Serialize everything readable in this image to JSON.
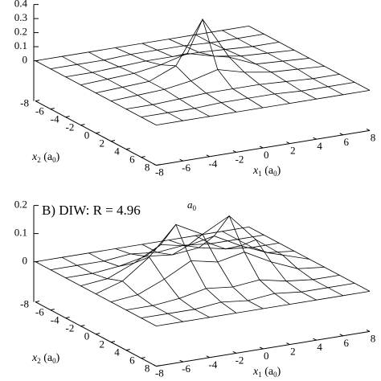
{
  "chart_data": [
    {
      "type": "surface",
      "x1": [
        -8,
        -6,
        -4,
        -2,
        0,
        2,
        4,
        6,
        8
      ],
      "x2": [
        -8,
        -6,
        -4,
        -2,
        0,
        2,
        4,
        6,
        8
      ],
      "z": [
        [
          0,
          0,
          0,
          0,
          0,
          0,
          0,
          0,
          0
        ],
        [
          0,
          0,
          0,
          0.01,
          0.01,
          0.01,
          0,
          0,
          0
        ],
        [
          0,
          0,
          0.01,
          0.02,
          0.02,
          0.02,
          0.01,
          0,
          0
        ],
        [
          0,
          0.01,
          0.02,
          0.05,
          0.1,
          0.05,
          0.02,
          0.01,
          0
        ],
        [
          0,
          0.01,
          0.02,
          0.1,
          0.4,
          0.1,
          0.02,
          0.01,
          0
        ],
        [
          0,
          0.01,
          0.02,
          0.05,
          0.1,
          0.05,
          0.02,
          0.01,
          0
        ],
        [
          0,
          0,
          0.01,
          0.02,
          0.02,
          0.02,
          0.01,
          0,
          0
        ],
        [
          0,
          0,
          0,
          0.01,
          0.01,
          0.01,
          0,
          0,
          0
        ],
        [
          0,
          0,
          0,
          0,
          0,
          0,
          0,
          0,
          0
        ]
      ],
      "zlim": [
        0,
        0.4
      ],
      "zticks": [
        0,
        0.1,
        0.2,
        0.3,
        0.4
      ],
      "x1ticks": [
        -8,
        -6,
        -4,
        -2,
        0,
        2,
        4,
        6,
        8
      ],
      "x2ticks": [
        -8,
        -6,
        -4,
        -2,
        0,
        2,
        4,
        6,
        8
      ],
      "x1_label": {
        "var": "x",
        "sub": "1",
        "unit": " (a",
        "unit_sub": "0",
        "close": ")"
      },
      "x2_label": {
        "var": "x",
        "sub": "2",
        "unit": " (a",
        "unit_sub": "0",
        "close": ")"
      },
      "color": "#000000"
    },
    {
      "type": "surface",
      "title": "B) DIW:  R = 4.96",
      "title_unit": {
        "var": "a",
        "sub": "0"
      },
      "x1": [
        -8,
        -6,
        -4,
        -2,
        0,
        2,
        4,
        6,
        8
      ],
      "x2": [
        -8,
        -6,
        -4,
        -2,
        0,
        2,
        4,
        6,
        8
      ],
      "z": [
        [
          0,
          0,
          0,
          0,
          0,
          0,
          0,
          0,
          0
        ],
        [
          0,
          0,
          0,
          0.01,
          0,
          0.01,
          0,
          0,
          0
        ],
        [
          0,
          0,
          0.01,
          0.03,
          0.02,
          0.03,
          0.01,
          0,
          0
        ],
        [
          0,
          0.01,
          0.05,
          0.1,
          0.08,
          0.1,
          0.05,
          0.01,
          0
        ],
        [
          0,
          0.03,
          0.1,
          0.2,
          0.15,
          0.2,
          0.1,
          0.03,
          0
        ],
        [
          0,
          0.01,
          0.05,
          0.1,
          0.08,
          0.1,
          0.05,
          0.01,
          0
        ],
        [
          0,
          0,
          0.01,
          0.03,
          0.02,
          0.03,
          0.01,
          0,
          0
        ],
        [
          0,
          0,
          0,
          0.01,
          0,
          0.01,
          0,
          0,
          0
        ],
        [
          0,
          0,
          0,
          0,
          0,
          0,
          0,
          0,
          0
        ]
      ],
      "zlim": [
        0,
        0.2
      ],
      "zticks": [
        0,
        0.1,
        0.2
      ],
      "x1ticks": [
        -8,
        -6,
        -4,
        -2,
        0,
        2,
        4,
        6,
        8
      ],
      "x2ticks": [
        -8,
        -6,
        -4,
        -2,
        0,
        2,
        4,
        6,
        8
      ],
      "x1_label": {
        "var": "x",
        "sub": "1",
        "unit": " (a",
        "unit_sub": "0",
        "close": ")"
      },
      "x2_label": {
        "var": "x",
        "sub": "2",
        "unit": " (a",
        "unit_sub": "0",
        "close": ")"
      },
      "color": "#000000"
    }
  ]
}
